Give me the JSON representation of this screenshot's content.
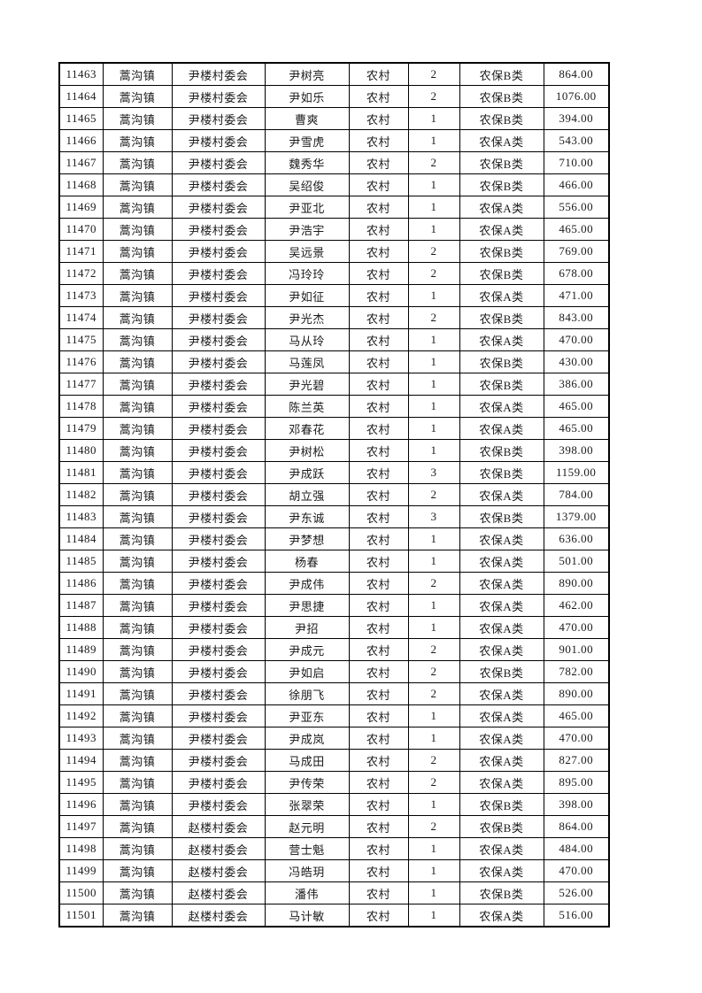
{
  "page": {
    "background_color": "#ffffff",
    "border_color": "#000000",
    "text_color": "#1a1a1a"
  },
  "table": {
    "rows": [
      [
        "11463",
        "蒿沟镇",
        "尹楼村委会",
        "尹树亮",
        "农村",
        "2",
        "农保B类",
        "864.00"
      ],
      [
        "11464",
        "蒿沟镇",
        "尹楼村委会",
        "尹如乐",
        "农村",
        "2",
        "农保B类",
        "1076.00"
      ],
      [
        "11465",
        "蒿沟镇",
        "尹楼村委会",
        "曹爽",
        "农村",
        "1",
        "农保B类",
        "394.00"
      ],
      [
        "11466",
        "蒿沟镇",
        "尹楼村委会",
        "尹雪虎",
        "农村",
        "1",
        "农保A类",
        "543.00"
      ],
      [
        "11467",
        "蒿沟镇",
        "尹楼村委会",
        "魏秀华",
        "农村",
        "2",
        "农保B类",
        "710.00"
      ],
      [
        "11468",
        "蒿沟镇",
        "尹楼村委会",
        "吴绍俊",
        "农村",
        "1",
        "农保B类",
        "466.00"
      ],
      [
        "11469",
        "蒿沟镇",
        "尹楼村委会",
        "尹亚北",
        "农村",
        "1",
        "农保A类",
        "556.00"
      ],
      [
        "11470",
        "蒿沟镇",
        "尹楼村委会",
        "尹浩宇",
        "农村",
        "1",
        "农保A类",
        "465.00"
      ],
      [
        "11471",
        "蒿沟镇",
        "尹楼村委会",
        "吴远景",
        "农村",
        "2",
        "农保B类",
        "769.00"
      ],
      [
        "11472",
        "蒿沟镇",
        "尹楼村委会",
        "冯玲玲",
        "农村",
        "2",
        "农保B类",
        "678.00"
      ],
      [
        "11473",
        "蒿沟镇",
        "尹楼村委会",
        "尹如征",
        "农村",
        "1",
        "农保A类",
        "471.00"
      ],
      [
        "11474",
        "蒿沟镇",
        "尹楼村委会",
        "尹光杰",
        "农村",
        "2",
        "农保B类",
        "843.00"
      ],
      [
        "11475",
        "蒿沟镇",
        "尹楼村委会",
        "马从玲",
        "农村",
        "1",
        "农保A类",
        "470.00"
      ],
      [
        "11476",
        "蒿沟镇",
        "尹楼村委会",
        "马莲凤",
        "农村",
        "1",
        "农保B类",
        "430.00"
      ],
      [
        "11477",
        "蒿沟镇",
        "尹楼村委会",
        "尹光碧",
        "农村",
        "1",
        "农保B类",
        "386.00"
      ],
      [
        "11478",
        "蒿沟镇",
        "尹楼村委会",
        "陈兰英",
        "农村",
        "1",
        "农保A类",
        "465.00"
      ],
      [
        "11479",
        "蒿沟镇",
        "尹楼村委会",
        "邓春花",
        "农村",
        "1",
        "农保A类",
        "465.00"
      ],
      [
        "11480",
        "蒿沟镇",
        "尹楼村委会",
        "尹树松",
        "农村",
        "1",
        "农保B类",
        "398.00"
      ],
      [
        "11481",
        "蒿沟镇",
        "尹楼村委会",
        "尹成跃",
        "农村",
        "3",
        "农保B类",
        "1159.00"
      ],
      [
        "11482",
        "蒿沟镇",
        "尹楼村委会",
        "胡立强",
        "农村",
        "2",
        "农保A类",
        "784.00"
      ],
      [
        "11483",
        "蒿沟镇",
        "尹楼村委会",
        "尹东诚",
        "农村",
        "3",
        "农保B类",
        "1379.00"
      ],
      [
        "11484",
        "蒿沟镇",
        "尹楼村委会",
        "尹梦想",
        "农村",
        "1",
        "农保A类",
        "636.00"
      ],
      [
        "11485",
        "蒿沟镇",
        "尹楼村委会",
        "杨春",
        "农村",
        "1",
        "农保A类",
        "501.00"
      ],
      [
        "11486",
        "蒿沟镇",
        "尹楼村委会",
        "尹成伟",
        "农村",
        "2",
        "农保A类",
        "890.00"
      ],
      [
        "11487",
        "蒿沟镇",
        "尹楼村委会",
        "尹思捷",
        "农村",
        "1",
        "农保A类",
        "462.00"
      ],
      [
        "11488",
        "蒿沟镇",
        "尹楼村委会",
        "尹招",
        "农村",
        "1",
        "农保A类",
        "470.00"
      ],
      [
        "11489",
        "蒿沟镇",
        "尹楼村委会",
        "尹成元",
        "农村",
        "2",
        "农保A类",
        "901.00"
      ],
      [
        "11490",
        "蒿沟镇",
        "尹楼村委会",
        "尹如启",
        "农村",
        "2",
        "农保B类",
        "782.00"
      ],
      [
        "11491",
        "蒿沟镇",
        "尹楼村委会",
        "徐朋飞",
        "农村",
        "2",
        "农保A类",
        "890.00"
      ],
      [
        "11492",
        "蒿沟镇",
        "尹楼村委会",
        "尹亚东",
        "农村",
        "1",
        "农保A类",
        "465.00"
      ],
      [
        "11493",
        "蒿沟镇",
        "尹楼村委会",
        "尹成岚",
        "农村",
        "1",
        "农保A类",
        "470.00"
      ],
      [
        "11494",
        "蒿沟镇",
        "尹楼村委会",
        "马成田",
        "农村",
        "2",
        "农保A类",
        "827.00"
      ],
      [
        "11495",
        "蒿沟镇",
        "尹楼村委会",
        "尹传荣",
        "农村",
        "2",
        "农保A类",
        "895.00"
      ],
      [
        "11496",
        "蒿沟镇",
        "尹楼村委会",
        "张翠荣",
        "农村",
        "1",
        "农保B类",
        "398.00"
      ],
      [
        "11497",
        "蒿沟镇",
        "赵楼村委会",
        "赵元明",
        "农村",
        "2",
        "农保B类",
        "864.00"
      ],
      [
        "11498",
        "蒿沟镇",
        "赵楼村委会",
        "营士魁",
        "农村",
        "1",
        "农保A类",
        "484.00"
      ],
      [
        "11499",
        "蒿沟镇",
        "赵楼村委会",
        "冯皓玥",
        "农村",
        "1",
        "农保A类",
        "470.00"
      ],
      [
        "11500",
        "蒿沟镇",
        "赵楼村委会",
        "潘伟",
        "农村",
        "1",
        "农保B类",
        "526.00"
      ],
      [
        "11501",
        "蒿沟镇",
        "赵楼村委会",
        "马计敏",
        "农村",
        "1",
        "农保A类",
        "516.00"
      ]
    ]
  }
}
